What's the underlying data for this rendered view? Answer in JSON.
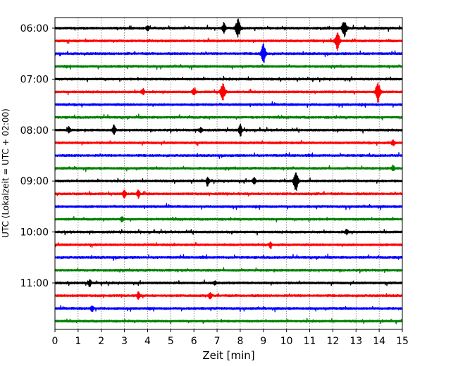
{
  "chart_data": {
    "type": "line",
    "title": "",
    "xlabel": "Zeit  [min]",
    "ylabel": "UTC (Lokalzeit = UTC + 02:00)",
    "xlim": [
      0,
      15
    ],
    "x_ticks": [
      "0",
      "1",
      "2",
      "3",
      "4",
      "5",
      "6",
      "7",
      "8",
      "9",
      "10",
      "11",
      "12",
      "13",
      "14",
      "15"
    ],
    "y_ticks": [
      {
        "label": "06:00",
        "row": 0
      },
      {
        "label": "07:00",
        "row": 4
      },
      {
        "label": "08:00",
        "row": 8
      },
      {
        "label": "09:00",
        "row": 12
      },
      {
        "label": "10:00",
        "row": 16
      },
      {
        "label": "11:00",
        "row": 20
      }
    ],
    "grid": "vertical dotted at each minute",
    "trace_colors": [
      "#000000",
      "#ff0000",
      "#0000ff",
      "#008000"
    ],
    "traces": [
      {
        "start": "06:00",
        "color": "#000000",
        "events": [
          {
            "t": 7.3,
            "amp": 0.6
          },
          {
            "t": 7.9,
            "amp": 0.9
          },
          {
            "t": 12.5,
            "amp": 0.8
          },
          {
            "t": 4.0,
            "amp": 0.25
          }
        ]
      },
      {
        "start": "06:15",
        "color": "#ff0000",
        "events": [
          {
            "t": 12.2,
            "amp": 0.9
          }
        ]
      },
      {
        "start": "06:30",
        "color": "#0000ff",
        "events": [
          {
            "t": 9.0,
            "amp": 0.95
          }
        ]
      },
      {
        "start": "06:45",
        "color": "#008000",
        "events": []
      },
      {
        "start": "07:00",
        "color": "#000000",
        "events": []
      },
      {
        "start": "07:15",
        "color": "#ff0000",
        "events": [
          {
            "t": 3.8,
            "amp": 0.3
          },
          {
            "t": 6.0,
            "amp": 0.35
          },
          {
            "t": 7.25,
            "amp": 0.85
          },
          {
            "t": 13.95,
            "amp": 1.0
          }
        ]
      },
      {
        "start": "07:30",
        "color": "#0000ff",
        "events": []
      },
      {
        "start": "07:45",
        "color": "#008000",
        "events": []
      },
      {
        "start": "08:00",
        "color": "#000000",
        "events": [
          {
            "t": 0.6,
            "amp": 0.3
          },
          {
            "t": 2.55,
            "amp": 0.5
          },
          {
            "t": 6.3,
            "amp": 0.25
          },
          {
            "t": 8.0,
            "amp": 0.65
          }
        ]
      },
      {
        "start": "08:15",
        "color": "#ff0000",
        "events": [
          {
            "t": 14.6,
            "amp": 0.3
          }
        ]
      },
      {
        "start": "08:30",
        "color": "#0000ff",
        "events": []
      },
      {
        "start": "08:45",
        "color": "#008000",
        "events": [
          {
            "t": 14.6,
            "amp": 0.25
          }
        ]
      },
      {
        "start": "09:00",
        "color": "#000000",
        "events": [
          {
            "t": 6.6,
            "amp": 0.4
          },
          {
            "t": 8.6,
            "amp": 0.35
          },
          {
            "t": 10.4,
            "amp": 1.0
          }
        ]
      },
      {
        "start": "09:15",
        "color": "#ff0000",
        "events": [
          {
            "t": 3.0,
            "amp": 0.45
          },
          {
            "t": 3.6,
            "amp": 0.4
          }
        ]
      },
      {
        "start": "09:30",
        "color": "#0000ff",
        "events": []
      },
      {
        "start": "09:45",
        "color": "#008000",
        "events": [
          {
            "t": 2.9,
            "amp": 0.25
          }
        ]
      },
      {
        "start": "10:00",
        "color": "#000000",
        "events": [
          {
            "t": 12.6,
            "amp": 0.25
          }
        ]
      },
      {
        "start": "10:15",
        "color": "#ff0000",
        "events": [
          {
            "t": 9.3,
            "amp": 0.25
          }
        ]
      },
      {
        "start": "10:30",
        "color": "#0000ff",
        "events": []
      },
      {
        "start": "10:45",
        "color": "#008000",
        "events": []
      },
      {
        "start": "11:00",
        "color": "#000000",
        "events": [
          {
            "t": 1.5,
            "amp": 0.35
          },
          {
            "t": 6.9,
            "amp": 0.2
          }
        ]
      },
      {
        "start": "11:15",
        "color": "#ff0000",
        "events": [
          {
            "t": 3.6,
            "amp": 0.35
          },
          {
            "t": 6.7,
            "amp": 0.3
          }
        ]
      },
      {
        "start": "11:30",
        "color": "#0000ff",
        "events": [
          {
            "t": 1.6,
            "amp": 0.3
          }
        ]
      },
      {
        "start": "11:45",
        "color": "#008000",
        "events": []
      }
    ]
  }
}
